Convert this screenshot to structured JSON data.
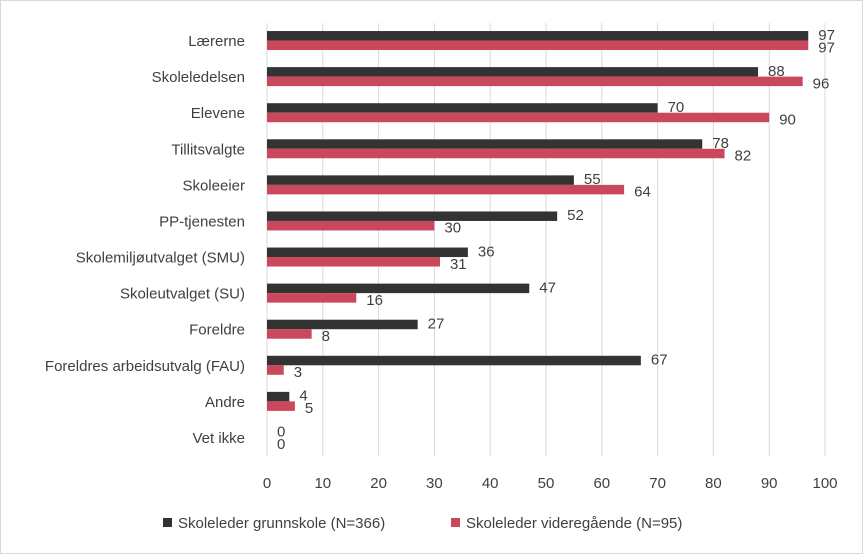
{
  "chart_data": {
    "type": "bar",
    "orientation": "horizontal",
    "categories": [
      "Lærerne",
      "Skoleledelsen",
      "Elevene",
      "Tillitsvalgte",
      "Skoleeier",
      "PP-tjenesten",
      "Skolemiljøutvalget (SMU)",
      "Skoleutvalget (SU)",
      "Foreldre",
      "Foreldres arbeidsutvalg (FAU)",
      "Andre",
      "Vet ikke"
    ],
    "series": [
      {
        "name": "Skoleleder grunnskole (N=366)",
        "color": "#333333",
        "values": [
          97,
          88,
          70,
          78,
          55,
          52,
          36,
          47,
          27,
          67,
          4,
          0
        ]
      },
      {
        "name": "Skoleleder videregående (N=95)",
        "color": "#c9485b",
        "values": [
          97,
          96,
          90,
          82,
          64,
          30,
          31,
          16,
          8,
          3,
          5,
          0
        ]
      }
    ],
    "xlim": [
      0,
      100
    ],
    "xticks": [
      "0",
      "10",
      "20",
      "30",
      "40",
      "50",
      "60",
      "70",
      "80",
      "90",
      "100"
    ],
    "grid": true,
    "legend_position": "bottom",
    "title": "",
    "xlabel": "",
    "ylabel": ""
  }
}
